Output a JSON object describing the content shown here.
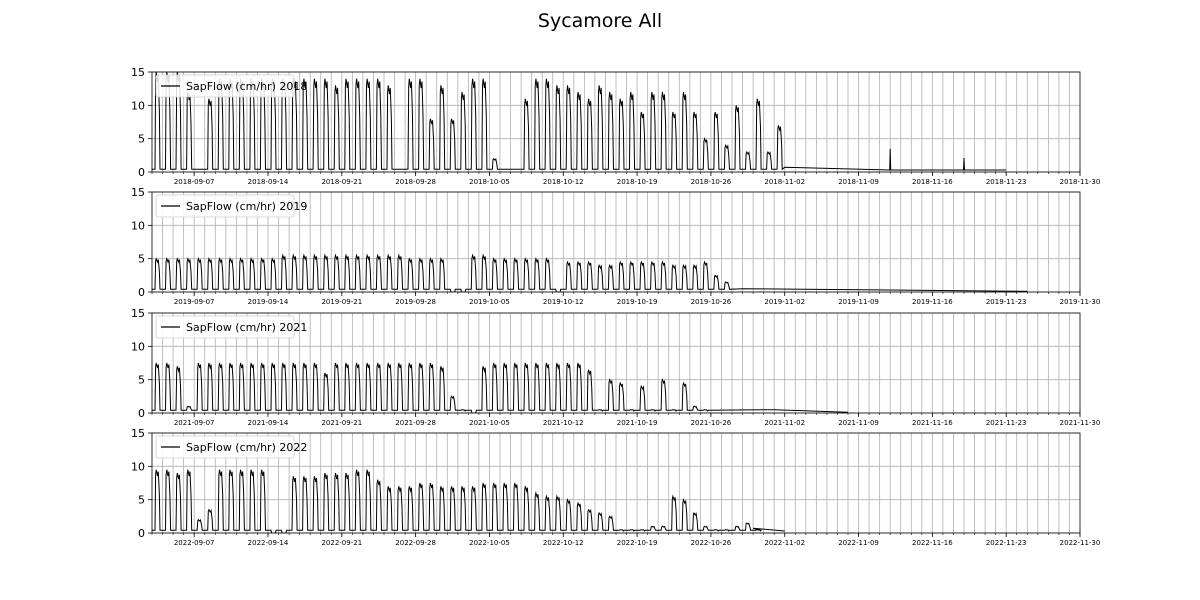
{
  "figure": {
    "title": "Sycamore All"
  },
  "chart_data": [
    {
      "type": "line",
      "year": "2018",
      "series": [
        {
          "name": "SapFlow (cm/hr) 2018",
          "color": "#000000"
        }
      ],
      "legend_location": "top-left",
      "ylim": [
        0,
        15
      ],
      "yticks": [
        "0",
        "5",
        "10",
        "15"
      ],
      "xlim": [
        "2018-09-03",
        "2018-11-30"
      ],
      "xticks": [
        "2018-09-07",
        "2018-09-14",
        "2018-09-21",
        "2018-09-28",
        "2018-10-05",
        "2018-10-12",
        "2018-10-19",
        "2018-10-26",
        "2018-11-02",
        "2018-11-09",
        "2018-11-16",
        "2018-11-23",
        "2018-11-30"
      ],
      "grid": "daily vertical lines and horizontal lines at y ticks",
      "daily_peaks": [
        15,
        15,
        15,
        12,
        11,
        14,
        14,
        14,
        14,
        14,
        14,
        14,
        14,
        14,
        14,
        14,
        13,
        14,
        14,
        14,
        14,
        13,
        14,
        14,
        8,
        13,
        8,
        12,
        14,
        14,
        2,
        11,
        14,
        14,
        13,
        13,
        12,
        11,
        13,
        12,
        11,
        12,
        9,
        12,
        12,
        9,
        12,
        9,
        5,
        9,
        4,
        10,
        3,
        11,
        3,
        7
      ],
      "gaps": [
        [
          "2018-09-07",
          "2018-09-08"
        ],
        [
          "2018-09-26",
          "2018-09-27"
        ],
        [
          "2018-10-06",
          "2018-10-08"
        ]
      ],
      "tail": {
        "start": "2018-11-02",
        "end": "2018-11-23",
        "level": 0.3,
        "spikes": [
          {
            "date": "2018-11-12",
            "value": 3.5
          },
          {
            "date": "2018-11-19",
            "value": 2.1
          }
        ]
      }
    },
    {
      "type": "line",
      "year": "2019",
      "series": [
        {
          "name": "SapFlow (cm/hr) 2019",
          "color": "#000000"
        }
      ],
      "legend_location": "top-left",
      "ylim": [
        0,
        15
      ],
      "yticks": [
        "0",
        "5",
        "10",
        "15"
      ],
      "xlim": [
        "2019-09-03",
        "2019-11-30"
      ],
      "xticks": [
        "2019-09-07",
        "2019-09-14",
        "2019-09-21",
        "2019-09-28",
        "2019-10-05",
        "2019-10-12",
        "2019-10-19",
        "2019-10-26",
        "2019-11-02",
        "2019-11-09",
        "2019-11-16",
        "2019-11-23",
        "2019-11-30"
      ],
      "grid": "daily vertical lines and horizontal lines at y ticks",
      "daily_peaks": [
        5,
        5,
        5,
        5,
        5,
        5,
        5,
        5,
        5,
        5,
        5,
        5,
        5.5,
        5.5,
        5.5,
        5.5,
        5.5,
        5.5,
        5.5,
        5.5,
        5.5,
        5.5,
        5.5,
        5.5,
        5,
        5,
        5,
        5,
        0,
        0,
        5.5,
        5.5,
        5,
        5,
        5,
        5,
        5,
        5,
        0,
        4.5,
        4.5,
        4.5,
        4,
        4,
        4.5,
        4.5,
        4.5,
        4.5,
        4.5,
        4,
        4,
        4,
        4.5,
        2.5,
        1.5
      ],
      "tail": {
        "start": "2019-10-29",
        "end": "2019-11-25",
        "level": 0.1
      }
    },
    {
      "type": "line",
      "year": "2021",
      "series": [
        {
          "name": "SapFlow (cm/hr) 2021",
          "color": "#000000"
        }
      ],
      "legend_location": "top-left",
      "ylim": [
        0,
        15
      ],
      "yticks": [
        "0",
        "5",
        "10",
        "15"
      ],
      "xlim": [
        "2021-09-03",
        "2021-11-30"
      ],
      "xticks": [
        "2021-09-07",
        "2021-09-14",
        "2021-09-21",
        "2021-09-28",
        "2021-10-05",
        "2021-10-12",
        "2021-10-19",
        "2021-10-26",
        "2021-11-02",
        "2021-11-09",
        "2021-11-16",
        "2021-11-23",
        "2021-11-30"
      ],
      "grid": "daily vertical lines and horizontal lines at y ticks",
      "daily_peaks": [
        7.5,
        7.5,
        7,
        1,
        7.5,
        7.5,
        7.5,
        7.5,
        7.5,
        7.5,
        7.5,
        7.5,
        7.5,
        7.5,
        7.5,
        7.5,
        6,
        7.5,
        7.5,
        7.5,
        7.5,
        7.5,
        7.5,
        7.5,
        7.5,
        7.5,
        7.5,
        7,
        2.5,
        0.5,
        0,
        7,
        7.5,
        7.5,
        7.5,
        7.5,
        7.5,
        7.5,
        7.5,
        7.5,
        7.5,
        6.5,
        0.5,
        5,
        4.5,
        0.5,
        4,
        0.5,
        5,
        0.5,
        4.5,
        1,
        0.5
      ],
      "tail": {
        "start": "2021-11-01",
        "end": "2021-11-08",
        "level": 0.1
      }
    },
    {
      "type": "line",
      "year": "2022",
      "series": [
        {
          "name": "SapFlow (cm/hr) 2022",
          "color": "#000000"
        }
      ],
      "legend_location": "top-left",
      "ylim": [
        0,
        15
      ],
      "yticks": [
        "0",
        "5",
        "10",
        "15"
      ],
      "xlim": [
        "2022-09-03",
        "2022-11-30"
      ],
      "xticks": [
        "2022-09-07",
        "2022-09-14",
        "2022-09-21",
        "2022-09-28",
        "2022-10-05",
        "2022-10-12",
        "2022-10-19",
        "2022-10-26",
        "2022-11-02",
        "2022-11-09",
        "2022-11-16",
        "2022-11-23",
        "2022-11-30"
      ],
      "grid": "daily vertical lines and horizontal lines at y ticks",
      "daily_peaks": [
        9.5,
        9.5,
        9,
        9.5,
        2,
        3.5,
        9.5,
        9.5,
        9.5,
        9.5,
        9.5,
        0,
        0,
        8.5,
        8.5,
        8.5,
        9,
        9,
        9,
        9.5,
        9.5,
        8,
        7,
        7,
        7,
        7.5,
        7.5,
        7,
        7,
        7,
        7,
        7.5,
        7.5,
        7.5,
        7.5,
        7,
        6,
        5.5,
        5.5,
        5,
        4.5,
        3.5,
        3,
        2.5,
        0.5,
        0.5,
        0.5,
        1,
        1,
        5.5,
        5,
        3,
        1,
        0.5,
        0.5,
        1,
        1.5,
        0.5
      ],
      "tail": {
        "start": "2022-10-30",
        "end": "2022-11-02",
        "level": 0.3
      }
    }
  ]
}
